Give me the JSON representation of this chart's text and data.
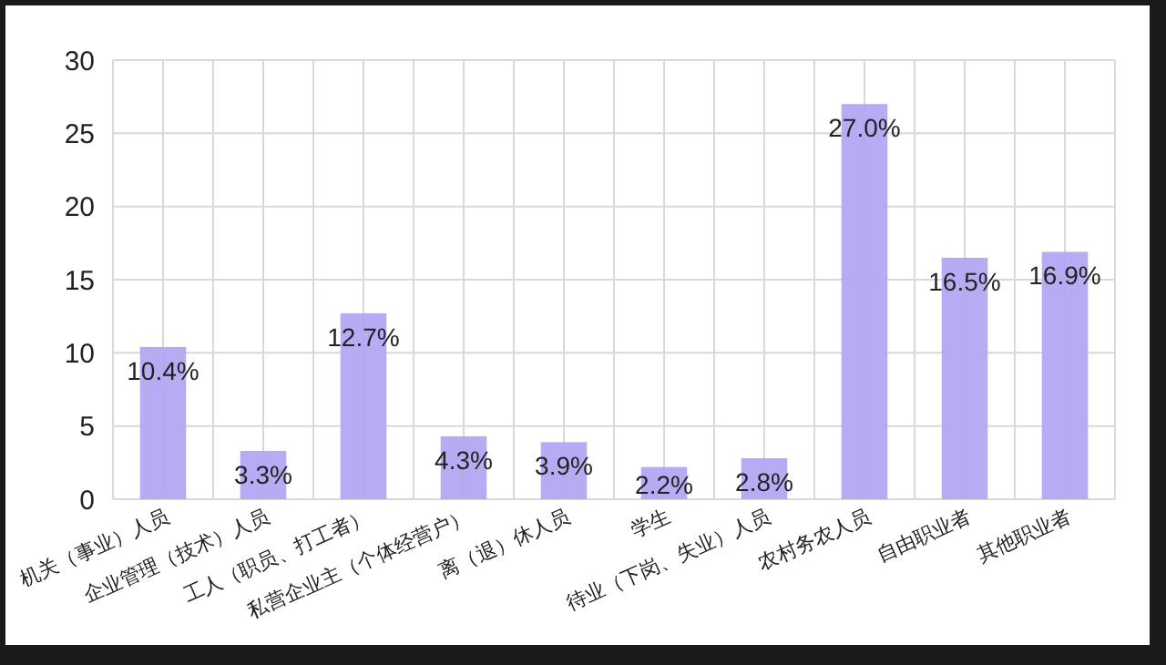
{
  "chart_data": {
    "type": "bar",
    "categories": [
      "机关（事业）人员",
      "企业管理（技术）人员",
      "工人（职员、打工者）",
      "私营企业主（个体经营户）",
      "离（退）休人员",
      "学生",
      "待业（下岗、失业）人员",
      "农村务农人员",
      "自由职业者",
      "其他职业者"
    ],
    "values": [
      10.4,
      3.3,
      12.7,
      4.3,
      3.9,
      2.2,
      2.8,
      27.0,
      16.5,
      16.9
    ],
    "value_labels": [
      "10.4%",
      "3.3%",
      "12.7%",
      "4.3%",
      "3.9%",
      "2.2%",
      "2.8%",
      "27.0%",
      "16.5%",
      "16.9%"
    ],
    "color": "#b4a6f3",
    "ylim": [
      0,
      30
    ],
    "yticks": [
      0,
      5,
      10,
      15,
      20,
      25,
      30
    ],
    "grid": true
  }
}
